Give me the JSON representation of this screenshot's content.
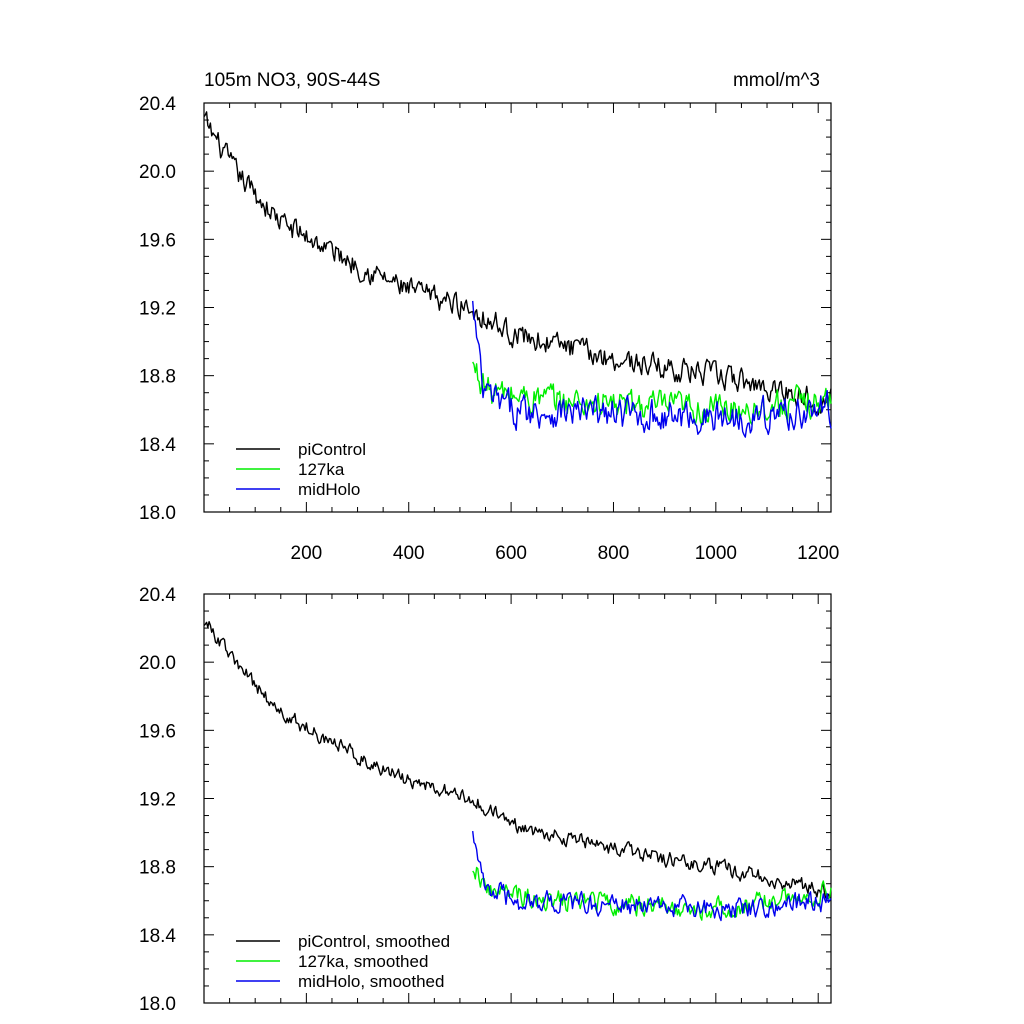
{
  "figure": {
    "title_left": "105m NO3, 90S-44S",
    "title_right": "mmol/m^3"
  },
  "chart_data": [
    {
      "type": "line",
      "title": "105m NO3, 90S-44S",
      "units": "mmol/m^3",
      "xlim": [
        0,
        1225
      ],
      "ylim": [
        18.0,
        20.4
      ],
      "xticks": [
        200,
        400,
        600,
        800,
        1000,
        1200
      ],
      "xtick_labels": [
        "200",
        "400",
        "600",
        "800",
        "1000",
        "1200"
      ],
      "yticks": [
        18.0,
        18.4,
        18.8,
        19.2,
        19.6,
        20.0,
        20.4
      ],
      "ytick_labels": [
        "18.0",
        "18.4",
        "18.8",
        "19.2",
        "19.6",
        "20.0",
        "20.4"
      ],
      "grid": false,
      "legend_position": "bottom-left",
      "series": [
        {
          "name": "piControl",
          "color": "#000000",
          "x_start": 0,
          "x_end": 1225,
          "trend": [
            [
              0,
              20.3
            ],
            [
              60,
              20.0
            ],
            [
              150,
              19.7
            ],
            [
              300,
              19.45
            ],
            [
              400,
              19.3
            ],
            [
              520,
              19.2
            ],
            [
              600,
              19.05
            ],
            [
              800,
              18.9
            ],
            [
              1000,
              18.8
            ],
            [
              1225,
              18.65
            ]
          ],
          "noise": 0.11
        },
        {
          "name": "127ka",
          "color": "#00ee00",
          "x_start": 525,
          "x_end": 1225,
          "trend": [
            [
              525,
              18.85
            ],
            [
              560,
              18.7
            ],
            [
              700,
              18.65
            ],
            [
              1000,
              18.6
            ],
            [
              1225,
              18.65
            ]
          ],
          "noise": 0.14
        },
        {
          "name": "midHolo",
          "color": "#0000ee",
          "x_start": 525,
          "x_end": 1225,
          "trend": [
            [
              525,
              19.2
            ],
            [
              545,
              18.7
            ],
            [
              600,
              18.6
            ],
            [
              1000,
              18.55
            ],
            [
              1225,
              18.6
            ]
          ],
          "noise": 0.15
        }
      ]
    },
    {
      "type": "line",
      "xlim": [
        0,
        1225
      ],
      "ylim": [
        18.0,
        20.4
      ],
      "xticks": [
        200,
        400,
        600,
        800,
        1000,
        1200
      ],
      "yticks": [
        18.0,
        18.4,
        18.8,
        19.2,
        19.6,
        20.0,
        20.4
      ],
      "ytick_labels": [
        "18.0",
        "18.4",
        "18.8",
        "19.2",
        "19.6",
        "20.0",
        "20.4"
      ],
      "grid": false,
      "legend_position": "bottom-left",
      "series": [
        {
          "name": "piControl, smoothed",
          "color": "#000000",
          "x_start": 0,
          "x_end": 1225,
          "trend": [
            [
              0,
              20.25
            ],
            [
              60,
              20.0
            ],
            [
              150,
              19.7
            ],
            [
              300,
              19.45
            ],
            [
              400,
              19.3
            ],
            [
              520,
              19.2
            ],
            [
              600,
              19.05
            ],
            [
              800,
              18.9
            ],
            [
              1000,
              18.8
            ],
            [
              1225,
              18.65
            ]
          ],
          "noise": 0.07
        },
        {
          "name": "127ka, smoothed",
          "color": "#00ee00",
          "x_start": 525,
          "x_end": 1225,
          "trend": [
            [
              525,
              18.82
            ],
            [
              560,
              18.65
            ],
            [
              700,
              18.6
            ],
            [
              1000,
              18.55
            ],
            [
              1225,
              18.65
            ]
          ],
          "noise": 0.1
        },
        {
          "name": "midHolo, smoothed",
          "color": "#0000ee",
          "x_start": 525,
          "x_end": 1225,
          "trend": [
            [
              525,
              19.05
            ],
            [
              545,
              18.7
            ],
            [
              600,
              18.6
            ],
            [
              1000,
              18.55
            ],
            [
              1225,
              18.6
            ]
          ],
          "noise": 0.1
        }
      ]
    }
  ]
}
